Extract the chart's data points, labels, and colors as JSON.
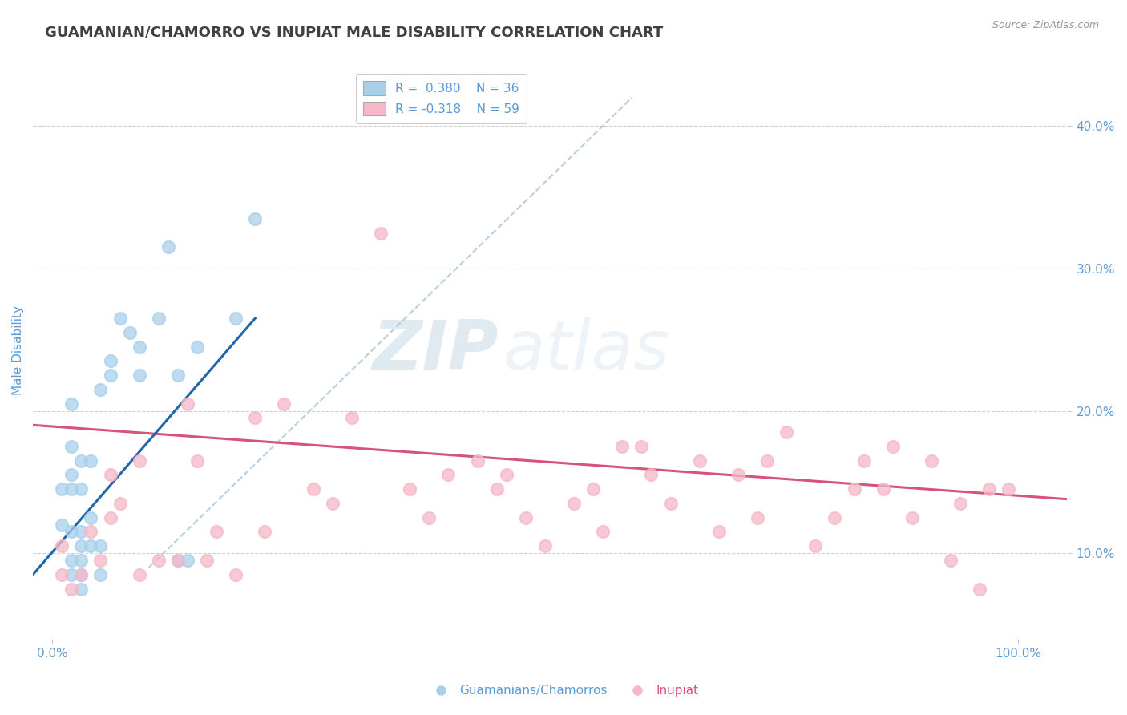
{
  "title": "GUAMANIAN/CHAMORRO VS INUPIAT MALE DISABILITY CORRELATION CHART",
  "source_text": "Source: ZipAtlas.com",
  "ylabel": "Male Disability",
  "xlabel": "",
  "xlim": [
    -0.02,
    1.05
  ],
  "ylim": [
    0.04,
    0.445
  ],
  "yticks": [
    0.1,
    0.2,
    0.3,
    0.4
  ],
  "ytick_labels": [
    "10.0%",
    "20.0%",
    "30.0%",
    "40.0%"
  ],
  "background_color": "#ffffff",
  "watermark": "ZIPatlas",
  "legend_R1": "R =  0.380",
  "legend_N1": "N = 36",
  "legend_R2": "R = -0.318",
  "legend_N2": "N = 59",
  "blue_color": "#a8d0eb",
  "pink_color": "#f4b8c8",
  "blue_line_color": "#2166ac",
  "pink_line_color": "#d6547a",
  "dashed_line_color": "#b8cfe0",
  "grid_color": "#d0d0d0",
  "axis_label_color": "#5b9bd5",
  "title_color": "#404040",
  "guamanian_x": [
    0.01,
    0.01,
    0.02,
    0.02,
    0.02,
    0.02,
    0.02,
    0.02,
    0.02,
    0.03,
    0.03,
    0.03,
    0.03,
    0.03,
    0.03,
    0.03,
    0.04,
    0.04,
    0.04,
    0.05,
    0.05,
    0.05,
    0.06,
    0.06,
    0.07,
    0.08,
    0.09,
    0.09,
    0.11,
    0.12,
    0.13,
    0.13,
    0.14,
    0.15,
    0.19,
    0.21
  ],
  "guamanian_y": [
    0.12,
    0.145,
    0.085,
    0.095,
    0.115,
    0.145,
    0.155,
    0.175,
    0.205,
    0.075,
    0.085,
    0.095,
    0.105,
    0.115,
    0.145,
    0.165,
    0.105,
    0.125,
    0.165,
    0.085,
    0.105,
    0.215,
    0.225,
    0.235,
    0.265,
    0.255,
    0.225,
    0.245,
    0.265,
    0.315,
    0.095,
    0.225,
    0.095,
    0.245,
    0.265,
    0.335
  ],
  "inupiat_x": [
    0.01,
    0.01,
    0.02,
    0.03,
    0.04,
    0.05,
    0.06,
    0.06,
    0.07,
    0.09,
    0.09,
    0.11,
    0.13,
    0.14,
    0.15,
    0.16,
    0.17,
    0.19,
    0.21,
    0.22,
    0.24,
    0.27,
    0.29,
    0.31,
    0.34,
    0.37,
    0.39,
    0.41,
    0.44,
    0.46,
    0.47,
    0.49,
    0.51,
    0.54,
    0.56,
    0.57,
    0.59,
    0.61,
    0.62,
    0.64,
    0.67,
    0.69,
    0.71,
    0.73,
    0.74,
    0.76,
    0.79,
    0.81,
    0.83,
    0.84,
    0.86,
    0.87,
    0.89,
    0.91,
    0.93,
    0.94,
    0.96,
    0.97,
    0.99
  ],
  "inupiat_y": [
    0.085,
    0.105,
    0.075,
    0.085,
    0.115,
    0.095,
    0.125,
    0.155,
    0.135,
    0.085,
    0.165,
    0.095,
    0.095,
    0.205,
    0.165,
    0.095,
    0.115,
    0.085,
    0.195,
    0.115,
    0.205,
    0.145,
    0.135,
    0.195,
    0.325,
    0.145,
    0.125,
    0.155,
    0.165,
    0.145,
    0.155,
    0.125,
    0.105,
    0.135,
    0.145,
    0.115,
    0.175,
    0.175,
    0.155,
    0.135,
    0.165,
    0.115,
    0.155,
    0.125,
    0.165,
    0.185,
    0.105,
    0.125,
    0.145,
    0.165,
    0.145,
    0.175,
    0.125,
    0.165,
    0.095,
    0.135,
    0.075,
    0.145,
    0.145
  ],
  "blue_trend_x": [
    -0.02,
    0.21
  ],
  "blue_trend_y": [
    0.085,
    0.265
  ],
  "pink_trend_x": [
    -0.02,
    1.05
  ],
  "pink_trend_y": [
    0.19,
    0.138
  ],
  "dashed_trend_x": [
    0.1,
    0.6
  ],
  "dashed_trend_y": [
    0.09,
    0.42
  ]
}
